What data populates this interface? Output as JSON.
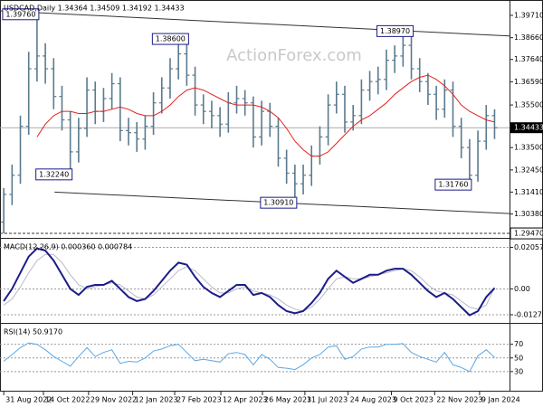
{
  "chart_data": [
    {
      "type": "ohlc",
      "title": "USDCAD,Daily  1.34364 1.34509 1.34192 1.34433",
      "watermark": "ActionForex.com",
      "color": "#5b7a8e",
      "xlim": [
        -0.45,
        60.8
      ],
      "ylim": [
        1.2926,
        1.4043
      ],
      "yticks": [
        {
          "value": 1.3971,
          "label": "1.39710"
        },
        {
          "value": 1.3866,
          "label": "1.38660"
        },
        {
          "value": 1.3764,
          "label": "1.37640"
        },
        {
          "value": 1.3659,
          "label": "1.36590"
        },
        {
          "value": 1.355,
          "label": "1.35500"
        },
        {
          "value": 1.335,
          "label": "1.33500"
        },
        {
          "value": 1.3245,
          "label": "1.32450"
        },
        {
          "value": 1.3141,
          "label": "1.31410"
        },
        {
          "value": 1.3038,
          "label": "1.30380"
        }
      ],
      "current_price": {
        "value": 1.34433,
        "label": "1.34433"
      },
      "support_level": {
        "value": 1.2947,
        "label": "1.29470"
      },
      "ohlc": [
        [
          1.3,
          1.316,
          1.2947,
          1.313
        ],
        [
          1.313,
          1.327,
          1.308,
          1.322
        ],
        [
          1.322,
          1.35,
          1.318,
          1.345
        ],
        [
          1.345,
          1.38,
          1.341,
          1.372
        ],
        [
          1.372,
          1.3976,
          1.366,
          1.378
        ],
        [
          1.378,
          1.384,
          1.365,
          1.372
        ],
        [
          1.372,
          1.377,
          1.353,
          1.359
        ],
        [
          1.359,
          1.364,
          1.343,
          1.348
        ],
        [
          1.348,
          1.352,
          1.3224,
          1.333
        ],
        [
          1.333,
          1.349,
          1.328,
          1.344
        ],
        [
          1.344,
          1.368,
          1.34,
          1.362
        ],
        [
          1.362,
          1.366,
          1.346,
          1.352
        ],
        [
          1.352,
          1.363,
          1.347,
          1.358
        ],
        [
          1.358,
          1.37,
          1.353,
          1.365
        ],
        [
          1.365,
          1.368,
          1.338,
          1.343
        ],
        [
          1.343,
          1.349,
          1.336,
          1.342
        ],
        [
          1.342,
          1.347,
          1.333,
          1.339
        ],
        [
          1.339,
          1.35,
          1.334,
          1.345
        ],
        [
          1.345,
          1.361,
          1.341,
          1.356
        ],
        [
          1.356,
          1.368,
          1.351,
          1.363
        ],
        [
          1.363,
          1.377,
          1.358,
          1.372
        ],
        [
          1.372,
          1.384,
          1.367,
          1.379
        ],
        [
          1.379,
          1.386,
          1.364,
          1.369
        ],
        [
          1.369,
          1.373,
          1.35,
          1.355
        ],
        [
          1.355,
          1.36,
          1.346,
          1.352
        ],
        [
          1.352,
          1.357,
          1.344,
          1.35
        ],
        [
          1.35,
          1.354,
          1.34,
          1.346
        ],
        [
          1.346,
          1.361,
          1.342,
          1.356
        ],
        [
          1.356,
          1.364,
          1.351,
          1.358
        ],
        [
          1.358,
          1.362,
          1.35,
          1.356
        ],
        [
          1.356,
          1.359,
          1.335,
          1.34
        ],
        [
          1.34,
          1.357,
          1.336,
          1.352
        ],
        [
          1.352,
          1.356,
          1.34,
          1.345
        ],
        [
          1.345,
          1.349,
          1.326,
          1.33
        ],
        [
          1.33,
          1.334,
          1.318,
          1.323
        ],
        [
          1.323,
          1.327,
          1.3091,
          1.318
        ],
        [
          1.318,
          1.327,
          1.313,
          1.322
        ],
        [
          1.322,
          1.336,
          1.317,
          1.331
        ],
        [
          1.331,
          1.345,
          1.327,
          1.34
        ],
        [
          1.34,
          1.36,
          1.336,
          1.355
        ],
        [
          1.355,
          1.366,
          1.351,
          1.36
        ],
        [
          1.36,
          1.364,
          1.342,
          1.347
        ],
        [
          1.347,
          1.355,
          1.343,
          1.35
        ],
        [
          1.35,
          1.367,
          1.346,
          1.362
        ],
        [
          1.362,
          1.371,
          1.357,
          1.366
        ],
        [
          1.366,
          1.373,
          1.36,
          1.367
        ],
        [
          1.367,
          1.381,
          1.362,
          1.376
        ],
        [
          1.376,
          1.383,
          1.37,
          1.378
        ],
        [
          1.378,
          1.388,
          1.373,
          1.383
        ],
        [
          1.383,
          1.3897,
          1.367,
          1.372
        ],
        [
          1.372,
          1.377,
          1.361,
          1.366
        ],
        [
          1.366,
          1.37,
          1.355,
          1.36
        ],
        [
          1.36,
          1.364,
          1.348,
          1.353
        ],
        [
          1.353,
          1.367,
          1.349,
          1.362
        ],
        [
          1.362,
          1.366,
          1.34,
          1.345
        ],
        [
          1.345,
          1.349,
          1.33,
          1.335
        ],
        [
          1.335,
          1.339,
          1.3176,
          1.322
        ],
        [
          1.322,
          1.343,
          1.319,
          1.338
        ],
        [
          1.338,
          1.355,
          1.334,
          1.35
        ],
        [
          1.35,
          1.353,
          1.339,
          1.3443
        ]
      ],
      "moving_average": {
        "color": "#e3211c",
        "values": [
          null,
          null,
          null,
          null,
          1.34,
          1.346,
          1.35,
          1.352,
          1.352,
          1.351,
          1.351,
          1.352,
          1.352,
          1.353,
          1.354,
          1.353,
          1.351,
          1.35,
          1.35,
          1.352,
          1.355,
          1.359,
          1.362,
          1.363,
          1.362,
          1.36,
          1.358,
          1.356,
          1.355,
          1.355,
          1.355,
          1.354,
          1.352,
          1.349,
          1.344,
          1.338,
          1.334,
          1.331,
          1.331,
          1.333,
          1.337,
          1.341,
          1.345,
          1.348,
          1.35,
          1.353,
          1.356,
          1.36,
          1.363,
          1.366,
          1.368,
          1.369,
          1.367,
          1.364,
          1.36,
          1.355,
          1.352,
          1.35,
          1.348,
          1.347
        ]
      },
      "trendlines": [
        {
          "x": [
            -0.4,
            60.8
          ],
          "y": [
            1.3992,
            1.3874
          ]
        },
        {
          "x": [
            6.1,
            60.8
          ],
          "y": [
            1.3141,
            1.304
          ]
        }
      ],
      "annotations": [
        {
          "x": 4,
          "value": 1.3976,
          "label": "1.39760"
        },
        {
          "x": 22,
          "value": 1.386,
          "label": "1.38600"
        },
        {
          "x": 49,
          "value": 1.3897,
          "label": "1.38970"
        },
        {
          "x": 8,
          "value": 1.3224,
          "label": "1.32240"
        },
        {
          "x": 35,
          "value": 1.3091,
          "label": "1.30910"
        },
        {
          "x": 56,
          "value": 1.3176,
          "label": "1.31760"
        }
      ]
    },
    {
      "type": "line",
      "title": "MACD(12,26,9) 0.000360 0.000784",
      "xlim": [
        -0.45,
        60.8
      ],
      "ylim": [
        -0.0168,
        0.0248
      ],
      "yticks": [
        0.020575,
        {
          "value": 0,
          "label": "0.00"
        },
        -0.012755
      ],
      "series": [
        {
          "color": "#1c1c8a",
          "width": 2,
          "values": [
            -0.006,
            0.0,
            0.008,
            0.016,
            0.02,
            0.019,
            0.014,
            0.007,
            0.0,
            -0.003,
            0.001,
            0.002,
            0.002,
            0.004,
            0.0,
            -0.004,
            -0.006,
            -0.005,
            -0.001,
            0.004,
            0.009,
            0.013,
            0.012,
            0.006,
            0.001,
            -0.002,
            -0.004,
            -0.001,
            0.002,
            0.002,
            -0.003,
            -0.002,
            -0.004,
            -0.008,
            -0.011,
            -0.012,
            -0.011,
            -0.007,
            -0.002,
            0.005,
            0.009,
            0.006,
            0.003,
            0.005,
            0.007,
            0.007,
            0.009,
            0.01,
            0.01,
            0.007,
            0.003,
            -0.001,
            -0.004,
            -0.002,
            -0.005,
            -0.009,
            -0.013,
            -0.011,
            -0.004,
            0.00036
          ]
        },
        {
          "color": "#b9b9c9",
          "width": 1,
          "values": [
            -0.008,
            -0.005,
            0.001,
            0.008,
            0.014,
            0.017,
            0.017,
            0.013,
            0.007,
            0.002,
            0.0,
            0.001,
            0.002,
            0.003,
            0.002,
            -0.001,
            -0.004,
            -0.005,
            -0.003,
            0.001,
            0.005,
            0.009,
            0.011,
            0.009,
            0.005,
            0.001,
            -0.002,
            -0.002,
            0.0,
            0.001,
            -0.001,
            -0.002,
            -0.003,
            -0.005,
            -0.008,
            -0.01,
            -0.011,
            -0.009,
            -0.005,
            0.0,
            0.005,
            0.006,
            0.005,
            0.005,
            0.006,
            0.007,
            0.008,
            0.009,
            0.01,
            0.009,
            0.006,
            0.002,
            -0.001,
            -0.002,
            -0.003,
            -0.006,
            -0.009,
            -0.01,
            -0.008,
            0.000784
          ]
        }
      ]
    },
    {
      "type": "line",
      "title": "RSI(14) 50.9170",
      "xlim": [
        -0.45,
        60.8
      ],
      "ylim": [
        2,
        100
      ],
      "yticks": [
        30,
        50,
        70
      ],
      "xticks": [
        {
          "value": 0,
          "label": "31 Aug 2022"
        },
        {
          "value": 4.77,
          "label": "14 Oct 2022"
        },
        {
          "value": 10.2,
          "label": "29 Nov 2022"
        },
        {
          "value": 15.5,
          "label": "12 Jan 2023"
        },
        {
          "value": 20.55,
          "label": "27 Feb 2023"
        },
        {
          "value": 26.1,
          "label": "12 Apr 2023"
        },
        {
          "value": 31.1,
          "label": "26 May 2023"
        },
        {
          "value": 36.2,
          "label": "11 Jul 2023"
        },
        {
          "value": 41.4,
          "label": "24 Aug 2023"
        },
        {
          "value": 46.6,
          "label": "9 Oct 2023"
        },
        {
          "value": 51.8,
          "label": "22 Nov 2023"
        },
        {
          "value": 57.2,
          "label": "9 Jan 2024"
        }
      ],
      "series": [
        {
          "color": "#5aa8e8",
          "width": 1,
          "values": [
            45,
            55,
            65,
            72,
            70,
            62,
            52,
            45,
            38,
            52,
            65,
            52,
            58,
            62,
            42,
            45,
            44,
            50,
            60,
            63,
            68,
            70,
            58,
            46,
            48,
            46,
            44,
            56,
            58,
            55,
            40,
            55,
            48,
            36,
            35,
            33,
            40,
            50,
            55,
            66,
            68,
            48,
            52,
            63,
            66,
            66,
            70,
            70,
            71,
            58,
            52,
            48,
            44,
            58,
            40,
            36,
            30,
            53,
            62,
            50.917
          ]
        }
      ]
    }
  ]
}
